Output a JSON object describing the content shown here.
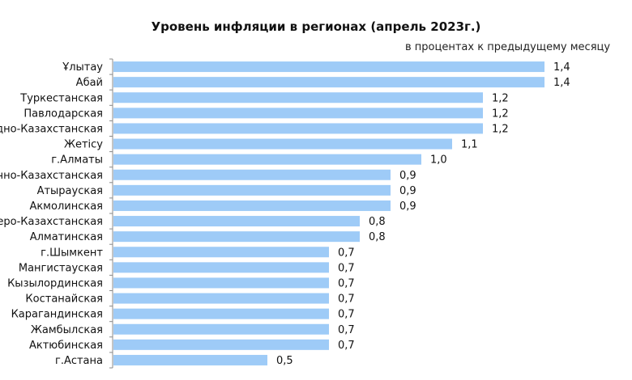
{
  "chart_data": {
    "type": "bar",
    "orientation": "horizontal",
    "title": "Уровень инфляции в регионах (апрель 2023г.)",
    "subtitle": "в процентах к предыдущему месяцу",
    "categories": [
      "Ұлытау",
      "Абай",
      "Туркестанская",
      "Павлодарская",
      "Западно-Казахстанская",
      "Жетісу",
      "г.Алматы",
      "Восточно-Казахстанская",
      "Атырауская",
      "Акмолинская",
      "Северо-Казахстанская",
      "Алматинская",
      "г.Шымкент",
      "Мангистауская",
      "Кызылординская",
      "Костанайская",
      "Карагандинская",
      "Жамбылская",
      "Актюбинская",
      "г.Астана"
    ],
    "values": [
      1.4,
      1.4,
      1.2,
      1.2,
      1.2,
      1.1,
      1.0,
      0.9,
      0.9,
      0.9,
      0.8,
      0.8,
      0.7,
      0.7,
      0.7,
      0.7,
      0.7,
      0.7,
      0.7,
      0.5
    ],
    "value_labels": [
      "1,4",
      "1,4",
      "1,2",
      "1,2",
      "1,2",
      "1,1",
      "1,0",
      "0,9",
      "0,9",
      "0,9",
      "0,8",
      "0,8",
      "0,7",
      "0,7",
      "0,7",
      "0,7",
      "0,7",
      "0,7",
      "0,7",
      "0,5"
    ],
    "xlim": [
      0,
      1.4
    ],
    "grid": false,
    "legend": "none",
    "bar_color": "#9ecbf7"
  }
}
